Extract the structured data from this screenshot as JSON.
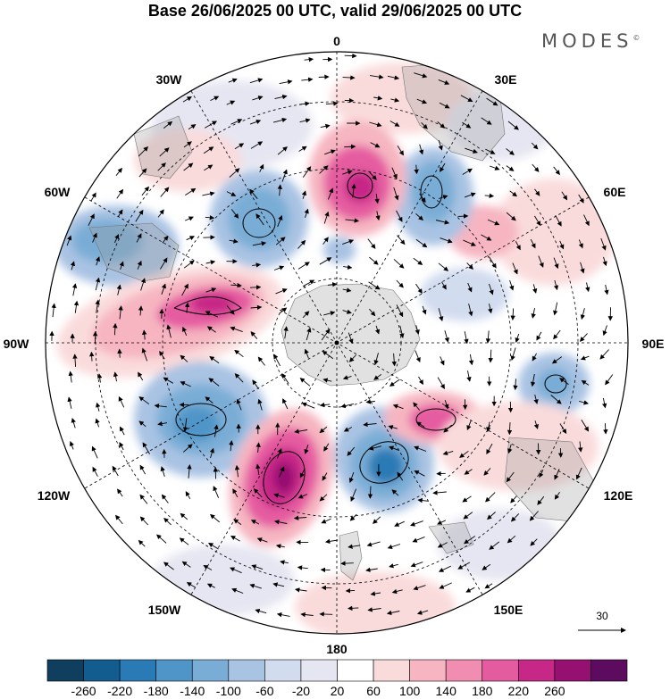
{
  "title": "Base 26/06/2025 00 UTC, valid 29/06/2025 00 UTC",
  "brand": "MODES",
  "brand_mark": "©",
  "longitude_labels": {
    "lon_0": "0",
    "lon_30e": "30E",
    "lon_60e": "60E",
    "lon_90e": "90E",
    "lon_120e": "120E",
    "lon_150e": "150E",
    "lon_180": "180",
    "lon_150w": "150W",
    "lon_120w": "120W",
    "lon_90w": "90W",
    "lon_60w": "60W",
    "lon_30w": "30W"
  },
  "vector_reference": {
    "label": "30"
  },
  "colorbar": {
    "labels": [
      "-260",
      "-220",
      "-180",
      "-140",
      "-100",
      "-60",
      "-20",
      "20",
      "60",
      "100",
      "140",
      "180",
      "220",
      "260"
    ],
    "colors": [
      "#0f3e5f",
      "#135c8f",
      "#2a7ab5",
      "#4f95c7",
      "#7aadd6",
      "#a9c3e3",
      "#d2dcef",
      "#e6e6f2",
      "#ffffff",
      "#fadbdc",
      "#f6b5c1",
      "#f08db0",
      "#e55ba0",
      "#c72787",
      "#951071",
      "#5c0b5e"
    ]
  }
}
